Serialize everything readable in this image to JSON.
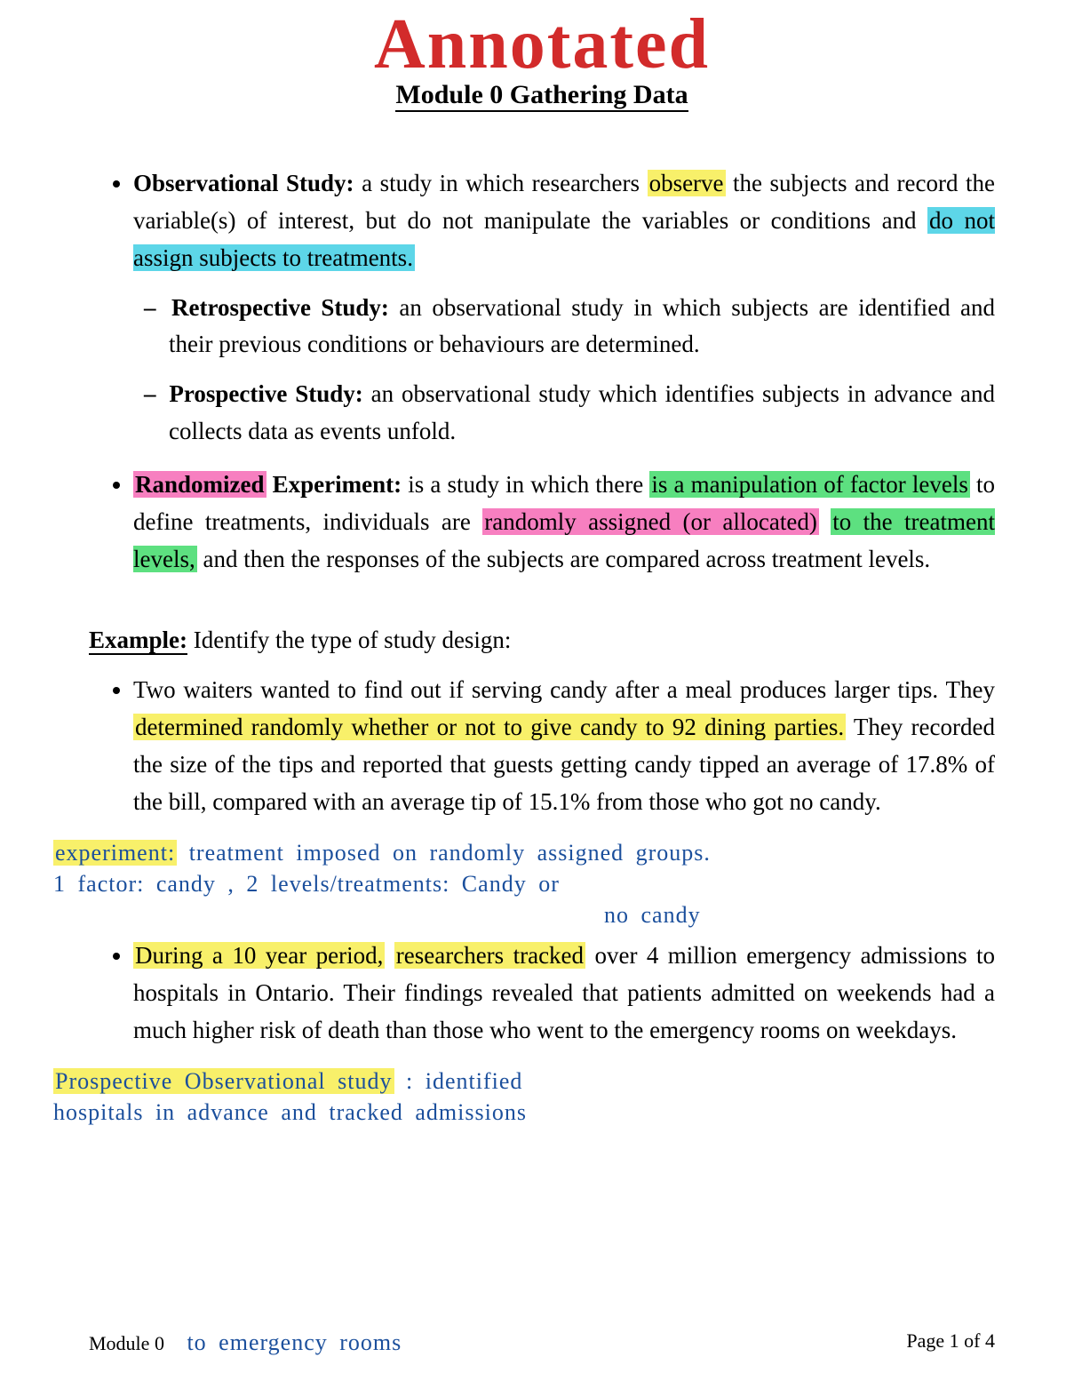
{
  "colors": {
    "annotated_red": "#d22b2b",
    "handwrite_blue": "#1b4f9c",
    "text_black": "#000000",
    "hl_yellow": "#f8f06a",
    "hl_cyan": "#5dd6e8",
    "hl_green": "#5de080",
    "hl_pink": "#f77fc0",
    "background": "#ffffff"
  },
  "fonts": {
    "body_family": "Times New Roman",
    "body_size_pt": 20,
    "handwrite_family": "Comic Sans MS",
    "annotated_size_pt": 60
  },
  "header": {
    "annotated": "Annotated",
    "module_title": "Module 0 Gathering Data"
  },
  "bullets": {
    "obs": {
      "term": "Observational Study:",
      "t1": " a study in which researchers ",
      "hl_observe": "observe",
      "t2": " the subjects and record the variable(s) of interest, but do not manipulate the variables or conditions and ",
      "hl_assign": "do not assign subjects to treatments."
    },
    "retro": {
      "term": "Retrospective Study:",
      "text": "  an observational study in which subjects are identified and their previous conditions or behaviours are determined."
    },
    "prosp": {
      "term": "Prospective Study:",
      "text": "  an observational study which identifies subjects in advance and collects data as events unfold."
    },
    "rand": {
      "hl_randomized": "Randomized",
      "term_rest": " Experiment:",
      "t1": " is a study in which there ",
      "hl_manip": "is a manipulation of factor levels",
      "t2": " to define treatments, individuals are ",
      "hl_randomly": "randomly assigned (or allocated)",
      "t2b": " ",
      "hl_levels": "to the treatment levels,",
      "t3": " and then the responses of the subjects are compared across treatment levels."
    }
  },
  "example": {
    "head": "Example:",
    "lead": "  Identify the type of study design:",
    "item1": {
      "t1": "Two waiters wanted to find out if serving candy after a meal produces larger tips. They ",
      "hl": "determined randomly whether or not to give candy to 92 dining parties.",
      "t2": " They recorded the size of the tips and reported that guests getting candy tipped an average of 17.8% of the bill, compared with an average tip of 15.1% from those who got no candy."
    },
    "item2": {
      "hl1": "During a 10 year period,",
      "mid": " ",
      "hl2": "researchers tracked",
      "t2": " over 4 million emergency admissions to hospitals in Ontario.  Their findings revealed that patients admitted on weekends had a much higher risk of death than those who went to the emergency rooms on weekdays."
    }
  },
  "handwriting": {
    "note1_hl": "experiment:",
    "note1_l1": " treatment imposed on randomly assigned groups.",
    "note1_l2": "1 factor: candy ,    2 levels/treatments:  Candy  or",
    "note1_l3": "no  candy",
    "note2_hl": "Prospective Observational study",
    "note2_l1": " : identified",
    "note2_l2": "hospitals in advance and tracked admissions",
    "note2_footer": "to  emergency  rooms"
  },
  "footer": {
    "left": "Module 0",
    "right": "Page 1 of 4"
  }
}
